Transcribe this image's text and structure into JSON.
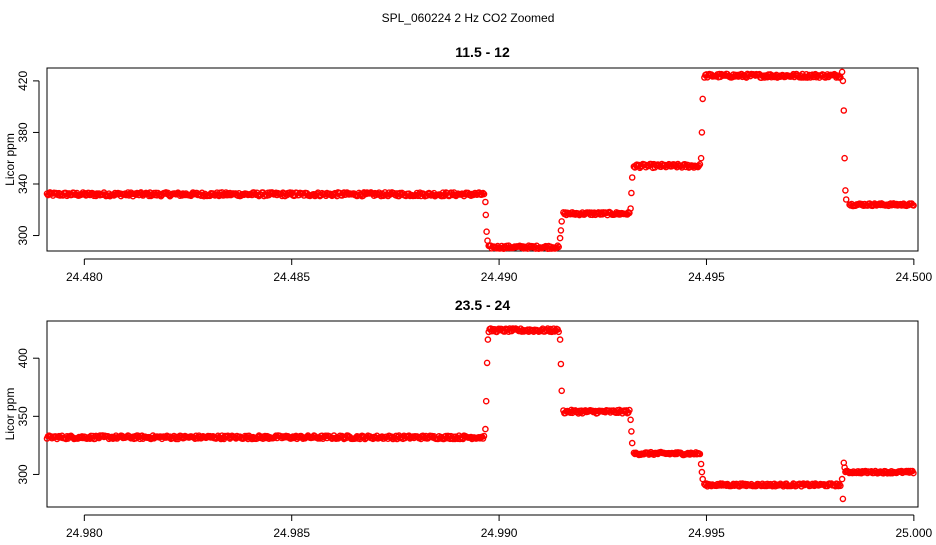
{
  "page_title": "SPL_060224  2 Hz CO2 Zoomed",
  "colors": {
    "points": "#ff0000",
    "axis": "#000000"
  },
  "chart_data": [
    {
      "type": "scatter",
      "title": "11.5 - 12",
      "xlabel": "",
      "ylabel": "Licor ppm",
      "xlim": [
        24.4791,
        24.5001
      ],
      "ylim": [
        288,
        430
      ],
      "xticks": [
        24.48,
        24.485,
        24.49,
        24.495,
        24.5
      ],
      "xtick_labels": [
        "24.480",
        "24.485",
        "24.490",
        "24.495",
        "24.500"
      ],
      "yticks": [
        300,
        340,
        380,
        420
      ],
      "ytick_labels": [
        "300",
        "340",
        "380",
        "420"
      ],
      "marker": "open-circle",
      "segments": [
        {
          "x": [
            24.4791,
            24.48965
          ],
          "y": 332,
          "noise": 1.5
        },
        {
          "x": [
            24.48975,
            24.49145
          ],
          "y": 291,
          "noise": 1.2
        },
        {
          "x": [
            24.49155,
            24.49315
          ],
          "y": 317,
          "noise": 1.2
        },
        {
          "x": [
            24.49325,
            24.49485
          ],
          "y": 354,
          "noise": 1.5
        },
        {
          "x": [
            24.49495,
            24.49825
          ],
          "y": 424,
          "noise": 1.5
        },
        {
          "x": [
            24.49845,
            24.5
          ],
          "y": 324,
          "noise": 1.0
        }
      ],
      "transition_points": [
        [
          24.48967,
          326
        ],
        [
          24.48968,
          316
        ],
        [
          24.4897,
          303
        ],
        [
          24.48972,
          296
        ],
        [
          24.49147,
          298
        ],
        [
          24.49149,
          304
        ],
        [
          24.49151,
          311
        ],
        [
          24.49317,
          321
        ],
        [
          24.49319,
          333
        ],
        [
          24.49321,
          345
        ],
        [
          24.49487,
          360
        ],
        [
          24.49489,
          380
        ],
        [
          24.49491,
          406
        ],
        [
          24.49827,
          427
        ],
        [
          24.49829,
          420
        ],
        [
          24.49831,
          397
        ],
        [
          24.49833,
          360
        ],
        [
          24.49835,
          335
        ],
        [
          24.49837,
          328
        ]
      ]
    },
    {
      "type": "scatter",
      "title": "23.5 - 24",
      "xlabel": "",
      "ylabel": "Licor ppm",
      "xlim": [
        24.9791,
        25.0001
      ],
      "ylim": [
        272,
        432
      ],
      "xticks": [
        24.98,
        24.985,
        24.99,
        24.995,
        25.0
      ],
      "xtick_labels": [
        "24.980",
        "24.985",
        "24.990",
        "24.995",
        "25.000"
      ],
      "yticks": [
        300,
        350,
        400
      ],
      "ytick_labels": [
        "300",
        "350",
        "400"
      ],
      "marker": "open-circle",
      "segments": [
        {
          "x": [
            24.9791,
            24.98965
          ],
          "y": 332,
          "noise": 1.5
        },
        {
          "x": [
            24.98975,
            24.99145
          ],
          "y": 424,
          "noise": 1.5
        },
        {
          "x": [
            24.99155,
            24.99315
          ],
          "y": 354,
          "noise": 1.5
        },
        {
          "x": [
            24.99325,
            24.99485
          ],
          "y": 318,
          "noise": 1.2
        },
        {
          "x": [
            24.99495,
            24.99825
          ],
          "y": 291,
          "noise": 1.2
        },
        {
          "x": [
            24.99835,
            25.0
          ],
          "y": 302,
          "noise": 1.0
        }
      ],
      "transition_points": [
        [
          24.98967,
          339
        ],
        [
          24.98969,
          363
        ],
        [
          24.98971,
          396
        ],
        [
          24.98973,
          416
        ],
        [
          24.99147,
          416
        ],
        [
          24.99149,
          395
        ],
        [
          24.99151,
          372
        ],
        [
          24.99317,
          347
        ],
        [
          24.99319,
          337
        ],
        [
          24.99321,
          327
        ],
        [
          24.99487,
          309
        ],
        [
          24.99489,
          302
        ],
        [
          24.99491,
          296
        ],
        [
          24.99827,
          296
        ],
        [
          24.99829,
          279
        ],
        [
          24.99831,
          310
        ],
        [
          24.99833,
          306
        ]
      ]
    }
  ]
}
